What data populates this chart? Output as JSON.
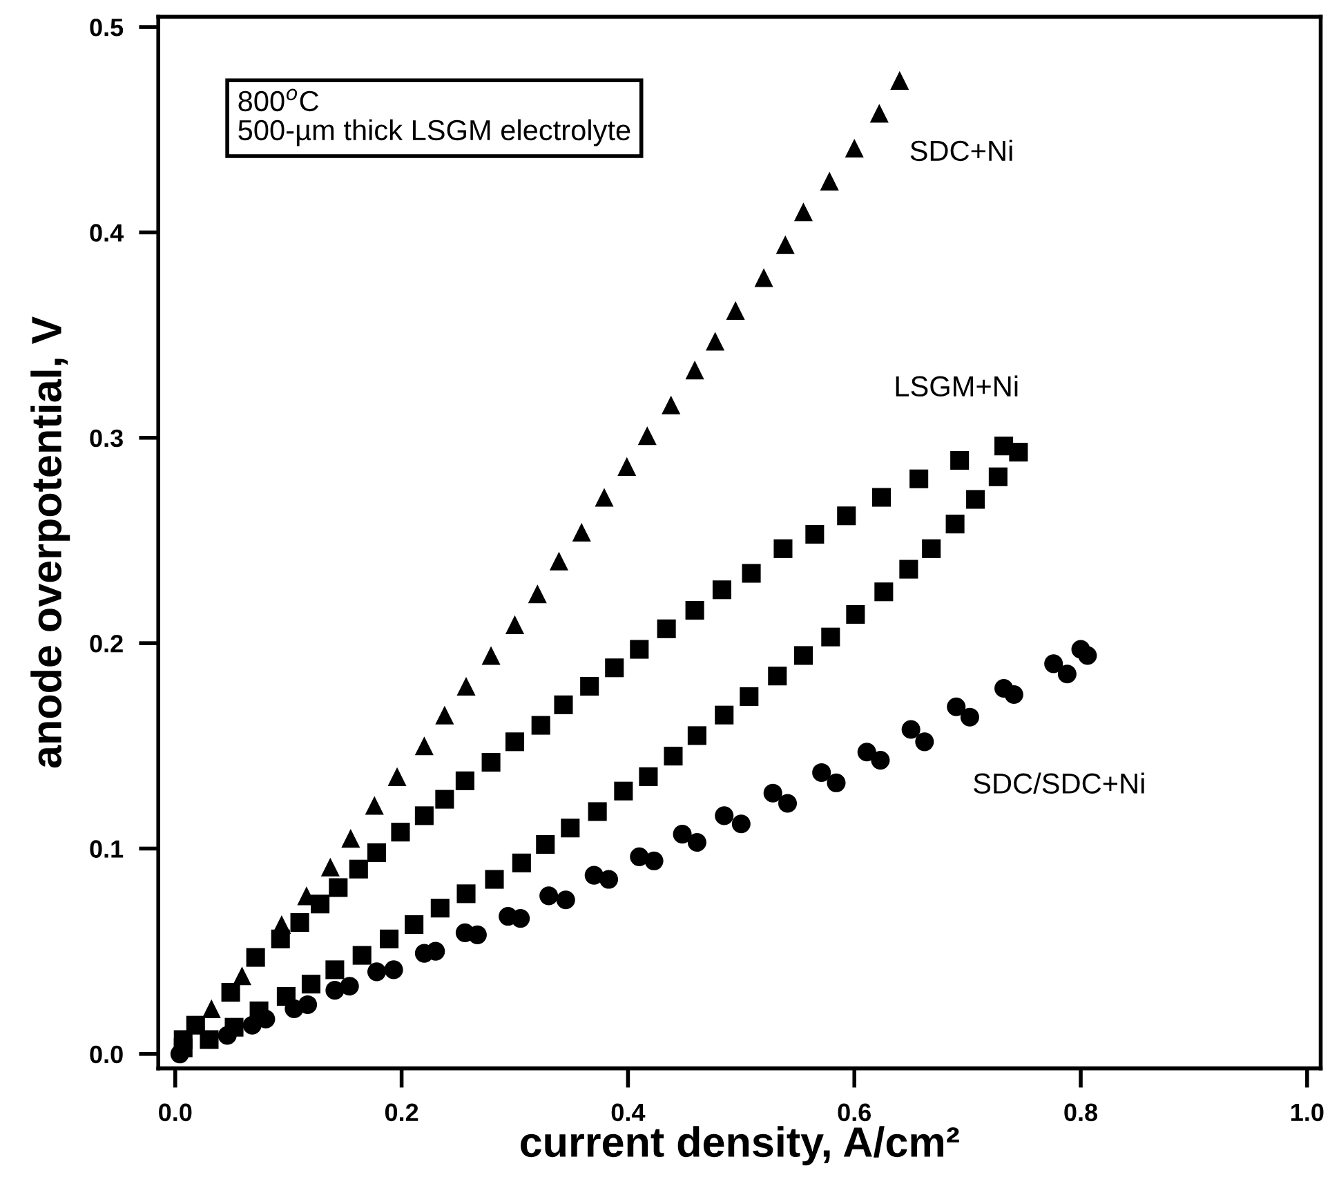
{
  "chart_data": {
    "type": "scatter",
    "xlabel": "current density, A/cm²",
    "ylabel": "anode overpotential, V",
    "xlim": [
      -0.015,
      1.012
    ],
    "ylim": [
      -0.007,
      0.505
    ],
    "xticks": [
      {
        "value": 0,
        "label": "0.0"
      },
      0.2,
      0.4,
      0.6,
      0.8,
      {
        "value": 1,
        "label": "1.0"
      }
    ],
    "yticks": [
      {
        "value": 0,
        "label": "0.0"
      },
      0.1,
      0.2,
      0.3,
      0.4,
      0.5
    ],
    "grid": false,
    "legend": false,
    "series": [
      {
        "name": "SDC+Ni",
        "color": "#000000",
        "marker": "triangle",
        "x": [
          0.032,
          0.059,
          0.094,
          0.116,
          0.137,
          0.155,
          0.176,
          0.196,
          0.22,
          0.238,
          0.257,
          0.279,
          0.3,
          0.32,
          0.339,
          0.359,
          0.379,
          0.399,
          0.417,
          0.438,
          0.459,
          0.477,
          0.495,
          0.52,
          0.539,
          0.555,
          0.578,
          0.6,
          0.622,
          0.64
        ],
        "values": [
          0.022,
          0.038,
          0.063,
          0.077,
          0.091,
          0.105,
          0.121,
          0.135,
          0.15,
          0.165,
          0.179,
          0.194,
          0.209,
          0.224,
          0.24,
          0.254,
          0.271,
          0.286,
          0.301,
          0.316,
          0.333,
          0.347,
          0.362,
          0.378,
          0.394,
          0.41,
          0.425,
          0.441,
          0.458,
          0.474
        ]
      },
      {
        "name": "LSGM+Ni",
        "color": "#000000",
        "marker": "square",
        "x": [
          0.007,
          0.018,
          0.049,
          0.071,
          0.093,
          0.11,
          0.128,
          0.144,
          0.162,
          0.178,
          0.199,
          0.22,
          0.238,
          0.256,
          0.279,
          0.3,
          0.323,
          0.343,
          0.366,
          0.388,
          0.41,
          0.434,
          0.459,
          0.483,
          0.509,
          0.537,
          0.565,
          0.593,
          0.624,
          0.657,
          0.693,
          0.732,
          0.745,
          0.727,
          0.707,
          0.689,
          0.668,
          0.648,
          0.626,
          0.601,
          0.579,
          0.555,
          0.532,
          0.507,
          0.485,
          0.461,
          0.44,
          0.418,
          0.396,
          0.373,
          0.349,
          0.327,
          0.306,
          0.282,
          0.257,
          0.234,
          0.211,
          0.189,
          0.165,
          0.141,
          0.12,
          0.098,
          0.074,
          0.052,
          0.03,
          0.007
        ],
        "values": [
          0.007,
          0.014,
          0.03,
          0.047,
          0.056,
          0.064,
          0.073,
          0.081,
          0.09,
          0.098,
          0.108,
          0.116,
          0.124,
          0.133,
          0.142,
          0.152,
          0.16,
          0.17,
          0.179,
          0.188,
          0.197,
          0.207,
          0.216,
          0.226,
          0.234,
          0.246,
          0.253,
          0.262,
          0.271,
          0.28,
          0.289,
          0.296,
          0.293,
          0.281,
          0.27,
          0.258,
          0.246,
          0.236,
          0.225,
          0.214,
          0.203,
          0.194,
          0.184,
          0.174,
          0.165,
          0.155,
          0.145,
          0.135,
          0.128,
          0.118,
          0.11,
          0.102,
          0.093,
          0.085,
          0.078,
          0.071,
          0.063,
          0.056,
          0.048,
          0.041,
          0.034,
          0.028,
          0.021,
          0.013,
          0.007,
          0.003
        ]
      },
      {
        "name": "SDC/SDC+Ni",
        "color": "#000000",
        "marker": "circle",
        "x": [
          0.004,
          0.046,
          0.068,
          0.08,
          0.105,
          0.117,
          0.141,
          0.154,
          0.178,
          0.193,
          0.22,
          0.23,
          0.256,
          0.267,
          0.294,
          0.305,
          0.33,
          0.345,
          0.37,
          0.383,
          0.41,
          0.423,
          0.448,
          0.461,
          0.485,
          0.5,
          0.528,
          0.541,
          0.571,
          0.584,
          0.611,
          0.623,
          0.65,
          0.662,
          0.69,
          0.702,
          0.732,
          0.741,
          0.776,
          0.788,
          0.8,
          0.806
        ],
        "values": [
          0.0,
          0.009,
          0.014,
          0.017,
          0.022,
          0.024,
          0.031,
          0.033,
          0.04,
          0.041,
          0.049,
          0.05,
          0.059,
          0.058,
          0.067,
          0.066,
          0.077,
          0.075,
          0.087,
          0.085,
          0.096,
          0.094,
          0.107,
          0.103,
          0.116,
          0.112,
          0.127,
          0.122,
          0.137,
          0.132,
          0.147,
          0.143,
          0.158,
          0.152,
          0.169,
          0.164,
          0.178,
          0.175,
          0.19,
          0.185,
          0.197,
          0.194
        ]
      }
    ],
    "annotations": [
      "800$^{o}$C\n500-µm thick LSGM electrolyte"
    ]
  }
}
